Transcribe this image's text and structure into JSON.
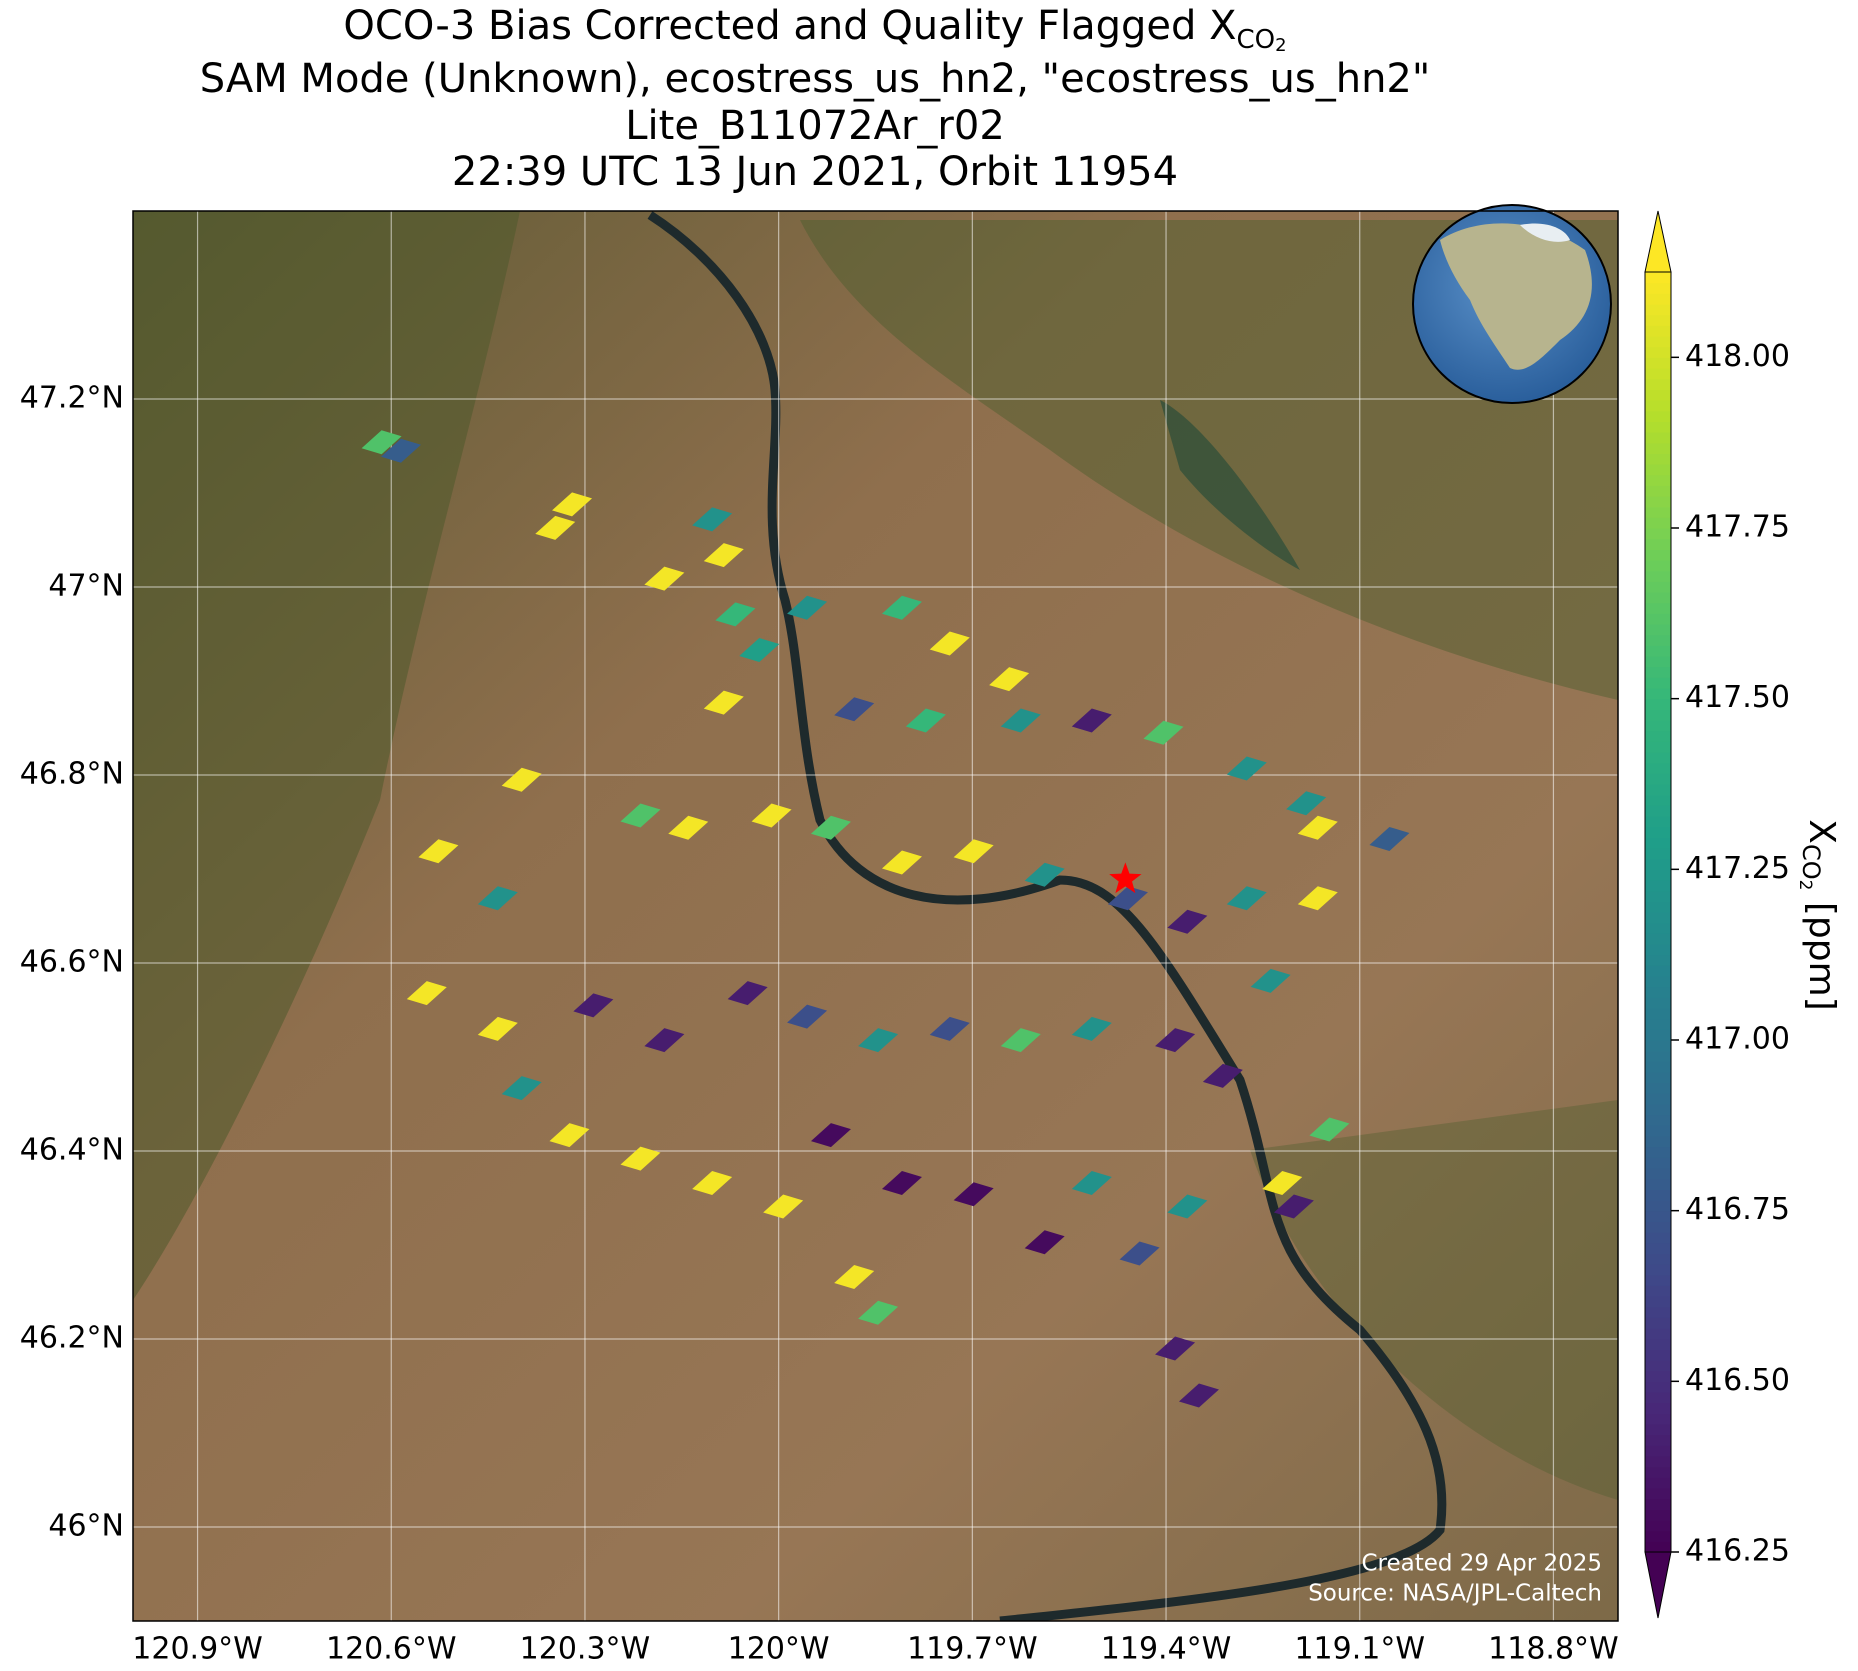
{
  "chart_data": {
    "type": "map",
    "title": {
      "line1": "OCO-3 Bias Corrected and Quality Flagged X",
      "line1_sub": "CO",
      "line1_subsub": "2",
      "line2": "SAM Mode (Unknown), ecostress_us_hn2, \"ecostress_us_hn2\"",
      "line3": "Lite_B11072Ar_r02",
      "line4": "22:39 UTC 13 Jun 2021, Orbit 11954"
    },
    "xlim": [
      -121.0,
      -118.7
    ],
    "ylim": [
      45.9,
      47.4
    ],
    "xticks": [
      {
        "value": -120.9,
        "label": "120.9°W"
      },
      {
        "value": -120.6,
        "label": "120.6°W"
      },
      {
        "value": -120.3,
        "label": "120.3°W"
      },
      {
        "value": -120.0,
        "label": "120°W"
      },
      {
        "value": -119.7,
        "label": "119.7°W"
      },
      {
        "value": -119.4,
        "label": "119.4°W"
      },
      {
        "value": -119.1,
        "label": "119.1°W"
      },
      {
        "value": -118.8,
        "label": "118.8°W"
      }
    ],
    "yticks": [
      {
        "value": 46.0,
        "label": "46°N"
      },
      {
        "value": 46.2,
        "label": "46.2°N"
      },
      {
        "value": 46.4,
        "label": "46.4°N"
      },
      {
        "value": 46.6,
        "label": "46.6°N"
      },
      {
        "value": 46.8,
        "label": "46.8°N"
      },
      {
        "value": 47.0,
        "label": "47°N"
      },
      {
        "value": 47.2,
        "label": "47.2°N"
      }
    ],
    "grid": true,
    "colormap": "viridis",
    "clim": [
      416.25,
      418.125
    ],
    "colorbar_ticks": [
      {
        "value": 416.25,
        "label": "416.25"
      },
      {
        "value": 416.5,
        "label": "416.50"
      },
      {
        "value": 416.75,
        "label": "416.75"
      },
      {
        "value": 417.0,
        "label": "417.00"
      },
      {
        "value": 417.25,
        "label": "417.25"
      },
      {
        "value": 417.5,
        "label": "417.50"
      },
      {
        "value": 417.75,
        "label": "417.75"
      },
      {
        "value": 418.0,
        "label": "418.00"
      }
    ],
    "colorbar_label": {
      "main": "X",
      "sub": "CO",
      "subsub": "2",
      "unit": " [ppm]"
    },
    "target": {
      "lon": -119.463,
      "lat": 46.689,
      "color": "#ff0000"
    },
    "soundings": {
      "lon": [
        -120.615,
        -120.585,
        -120.32,
        -120.346,
        -120.103,
        -120.085,
        -120.177,
        -120.067,
        -120.03,
        -120.085,
        -119.956,
        -119.809,
        -119.735,
        -119.643,
        -119.883,
        -119.772,
        -119.625,
        -119.515,
        -119.404,
        -119.275,
        -119.183,
        -119.054,
        -120.398,
        -120.527,
        -120.435,
        -120.214,
        -120.14,
        -120.011,
        -119.919,
        -119.809,
        -119.698,
        -119.588,
        -119.459,
        -119.367,
        -119.275,
        -119.165,
        -119.165,
        -119.238,
        -120.545,
        -120.435,
        -120.398,
        -120.287,
        -120.177,
        -120.048,
        -119.956,
        -119.846,
        -119.735,
        -119.625,
        -119.515,
        -119.386,
        -119.312,
        -120.324,
        -120.214,
        -120.103,
        -119.993,
        -119.883,
        -119.846,
        -119.919,
        -119.809,
        -119.698,
        -119.588,
        -119.515,
        -119.441,
        -119.386,
        -119.349,
        -119.147,
        -119.202,
        -119.22,
        -119.367
      ],
      "lat": [
        47.155,
        47.146,
        47.089,
        47.064,
        47.073,
        47.035,
        47.01,
        46.972,
        46.934,
        46.878,
        46.979,
        46.979,
        46.941,
        46.903,
        46.871,
        46.859,
        46.859,
        46.859,
        46.846,
        46.808,
        46.771,
        46.733,
        46.796,
        46.72,
        46.67,
        46.758,
        46.745,
        46.758,
        46.745,
        46.708,
        46.72,
        46.695,
        46.67,
        46.645,
        46.67,
        46.745,
        46.67,
        46.582,
        46.569,
        46.531,
        46.468,
        46.556,
        46.519,
        46.569,
        46.544,
        46.519,
        46.531,
        46.519,
        46.531,
        46.519,
        46.481,
        46.418,
        46.393,
        46.367,
        46.342,
        46.267,
        46.229,
        46.418,
        46.367,
        46.355,
        46.304,
        46.367,
        46.292,
        46.191,
        46.141,
        46.424,
        46.342,
        46.367,
        46.342
      ],
      "values": [
        417.6,
        416.8,
        418.1,
        418.1,
        417.2,
        418.1,
        418.1,
        417.5,
        417.3,
        418.1,
        417.2,
        417.5,
        418.1,
        418.1,
        416.7,
        417.5,
        417.2,
        416.4,
        417.6,
        417.2,
        417.2,
        416.8,
        418.1,
        418.1,
        417.2,
        417.6,
        418.1,
        418.1,
        417.6,
        418.1,
        418.1,
        417.2,
        416.7,
        416.4,
        417.2,
        418.1,
        418.1,
        417.2,
        418.1,
        418.1,
        417.2,
        416.4,
        416.4,
        416.4,
        416.7,
        417.2,
        416.7,
        417.6,
        417.2,
        416.4,
        416.4,
        418.1,
        418.1,
        418.1,
        418.1,
        418.1,
        417.6,
        416.3,
        416.3,
        416.3,
        416.3,
        417.2,
        416.7,
        416.4,
        416.4,
        417.6,
        416.4,
        418.1,
        417.2
      ]
    },
    "credits": {
      "line1": "Created 29 Apr 2025",
      "line2": "Source: NASA/JPL-Caltech"
    }
  }
}
